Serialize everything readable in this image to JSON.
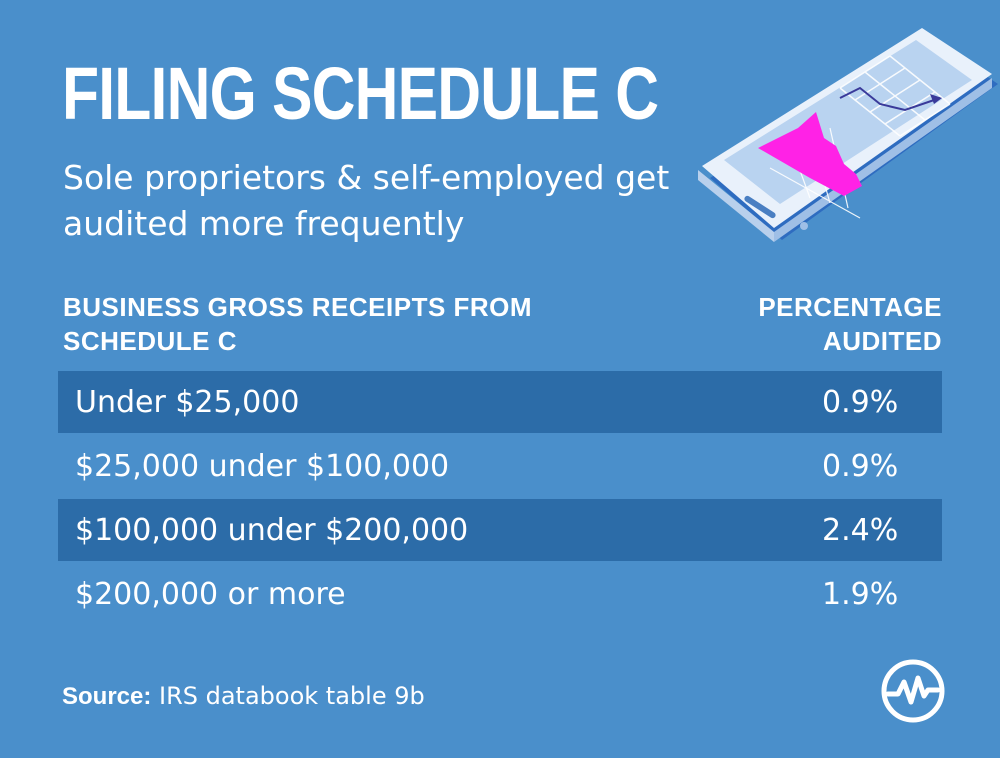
{
  "header": {
    "title": "FILING SCHEDULE C",
    "subtitle": "Sole proprietors & self-employed get audited more  frequently"
  },
  "chart_data": {
    "type": "table",
    "columns": [
      "BUSINESS GROSS RECEIPTS FROM SCHEDULE C",
      "PERCENTAGE AUDITED"
    ],
    "rows": [
      {
        "category": "Under $25,000",
        "value": "0.9%"
      },
      {
        "category": "$25,000 under $100,000",
        "value": "0.9%"
      },
      {
        "category": "$100,000 under $200,000",
        "value": "2.4%"
      },
      {
        "category": "$200,000 or more",
        "value": "1.9%"
      }
    ],
    "values": [
      0.9,
      0.9,
      2.4,
      1.9
    ]
  },
  "footer": {
    "source_label": "Source:",
    "source_text": " IRS databook table 9b"
  },
  "colors": {
    "background": "#4a8fcb",
    "row_band": "#2c6ca8",
    "accent": "#ff22e6"
  },
  "icons": {
    "illustration": "tablet-chart-illustration",
    "brand": "wave-logo-icon"
  }
}
